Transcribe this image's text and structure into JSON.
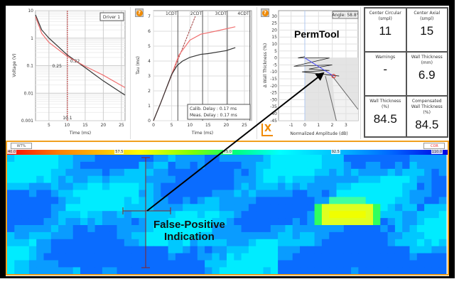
{
  "voltage_chart": {
    "legend": "Driver 1",
    "xlabel": "Time (ms)",
    "ylabel": "Voltage (V)",
    "xticks": [
      "5",
      "10",
      "15",
      "20",
      "25"
    ],
    "yticks": [
      "10",
      "1",
      "0.1",
      "0.01",
      "0.001"
    ],
    "marker_label": "10.1",
    "black_value": "0.25",
    "red_value": "0.22",
    "chart_data": {
      "type": "line",
      "x_scale": "linear",
      "y_scale": "log",
      "xlim": [
        1.3,
        26
      ],
      "ylim": [
        0.001,
        10
      ],
      "series": [
        {
          "color": "#333333",
          "x": [
            1.3,
            3,
            5,
            10,
            15,
            20,
            26
          ],
          "y": [
            7,
            2,
            1,
            0.25,
            0.085,
            0.028,
            0.0085
          ]
        },
        {
          "color": "#f07070",
          "x": [
            1.3,
            3,
            5,
            10,
            15,
            20,
            26
          ],
          "y": [
            6,
            1.5,
            0.7,
            0.22,
            0.095,
            0.045,
            0.016
          ]
        }
      ],
      "marker_x": 10.1
    }
  },
  "tau_chart": {
    "xlabel": "Time (ms)",
    "ylabel": "Tau (ms)",
    "xticks": [
      "0",
      "5",
      "10",
      "15",
      "20",
      "25"
    ],
    "yticks": [
      "0",
      "1",
      "2",
      "3",
      "4",
      "5",
      "6",
      "7"
    ],
    "cdt_labels": [
      "1CDT",
      "2CDT",
      "3CDT",
      "4CDT"
    ],
    "calib_delay": "Calib. Delay : 0.17 ms",
    "meas_delay": "Meas. Delay : 0.17 ms",
    "chart_data": {
      "type": "line",
      "xlim": [
        0,
        25
      ],
      "ylim": [
        0,
        7.2
      ],
      "cdt_x": [
        6.7,
        13.5,
        20.3,
        26.5
      ],
      "series": [
        {
          "color": "#f07070",
          "x": [
            0,
            2,
            5,
            7,
            10,
            13,
            17,
            22.5
          ],
          "y": [
            0,
            1.2,
            3.1,
            4.4,
            5.4,
            5.8,
            6,
            6.3
          ]
        },
        {
          "color": "#333333",
          "x": [
            0,
            2,
            5,
            6.5,
            8,
            10,
            13,
            15,
            20,
            22.5
          ],
          "y": [
            0,
            1.2,
            3.1,
            3.7,
            4.0,
            4.25,
            4.45,
            4.5,
            4.7,
            4.9
          ]
        }
      ],
      "reference_line": {
        "x": [
          0,
          11.5
        ],
        "y": [
          0,
          7
        ]
      }
    }
  },
  "perm_chart": {
    "title": "PermTool",
    "angle": "Angle: 58.8°",
    "xlabel": "Normalized Amplitude (dB)",
    "ylabel": "Δ Wall Thickness (%)",
    "xticks": [
      "-1",
      "0",
      "1",
      "2",
      "3"
    ],
    "yticks": [
      "30",
      "25",
      "20",
      "15",
      "10",
      "5",
      "0",
      "-5",
      "-10",
      "-15",
      "-20",
      "-25",
      "-30",
      "-35",
      "-40",
      "-45"
    ],
    "close_label": "X",
    "chart_data": {
      "type": "line",
      "xlim": [
        -1.5,
        3.8
      ],
      "ylim": [
        -46,
        32
      ],
      "trace": {
        "x": [
          0,
          -0.5,
          1.8,
          -0.8,
          2.0,
          0.3,
          1.8,
          -0.2,
          2.5,
          1.5
        ],
        "y": [
          1,
          0,
          0,
          -6,
          -5,
          -8,
          -9,
          -10,
          -13,
          -12
        ]
      },
      "vector": {
        "x": [
          0,
          2.1
        ],
        "y": [
          0,
          -13
        ]
      }
    }
  },
  "readouts": [
    {
      "label": "Center Circular (smpl)",
      "value": "11"
    },
    {
      "label": "Center Axial (smpl)",
      "value": "15"
    },
    {
      "label": "Warnings",
      "value": "-"
    },
    {
      "label": "Wall Thickness (mm)",
      "value": "6.9"
    },
    {
      "label": "Wall Thickness (%)",
      "value": "84.5"
    },
    {
      "label": "Compensated Wall Thickness (%)",
      "value": "84.5"
    }
  ],
  "cscan": {
    "channel": "WT%",
    "cor_label": "COR",
    "scale_labels": [
      "40.0",
      "57.5",
      "75.0",
      "92.5",
      "110.0"
    ],
    "annotation_line1": "False-Positive",
    "annotation_line2": "Indication"
  }
}
